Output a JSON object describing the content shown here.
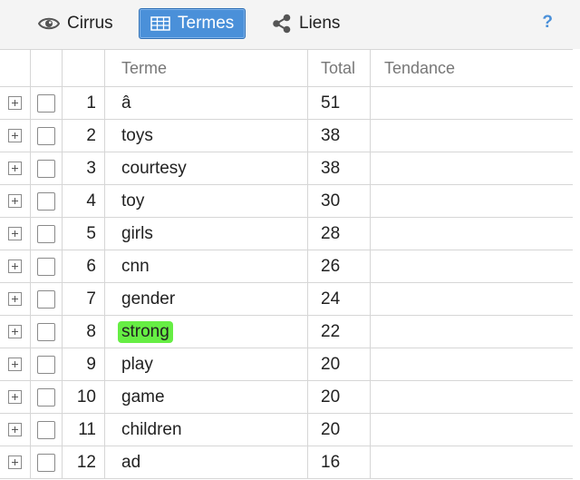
{
  "toolbar": {
    "tabs": [
      {
        "label": "Cirrus",
        "icon": "eye-icon"
      },
      {
        "label": "Termes",
        "icon": "table-icon",
        "active": true
      },
      {
        "label": "Liens",
        "icon": "share-icon"
      }
    ],
    "help": "?"
  },
  "grid": {
    "columns": {
      "term": "Terme",
      "total": "Total",
      "trend": "Tendance"
    },
    "rows": [
      {
        "num": "1",
        "term": "â",
        "total": "51"
      },
      {
        "num": "2",
        "term": "toys",
        "total": "38"
      },
      {
        "num": "3",
        "term": "courtesy",
        "total": "38"
      },
      {
        "num": "4",
        "term": "toy",
        "total": "30"
      },
      {
        "num": "5",
        "term": "girls",
        "total": "28"
      },
      {
        "num": "6",
        "term": "cnn",
        "total": "26"
      },
      {
        "num": "7",
        "term": "gender",
        "total": "24"
      },
      {
        "num": "8",
        "term": "strong",
        "total": "22",
        "highlighted": true
      },
      {
        "num": "9",
        "term": "play",
        "total": "20"
      },
      {
        "num": "10",
        "term": "game",
        "total": "20"
      },
      {
        "num": "11",
        "term": "children",
        "total": "20"
      },
      {
        "num": "12",
        "term": "ad",
        "total": "16"
      }
    ]
  },
  "colors": {
    "accent": "#4a90d9",
    "highlight": "#66ee44"
  }
}
